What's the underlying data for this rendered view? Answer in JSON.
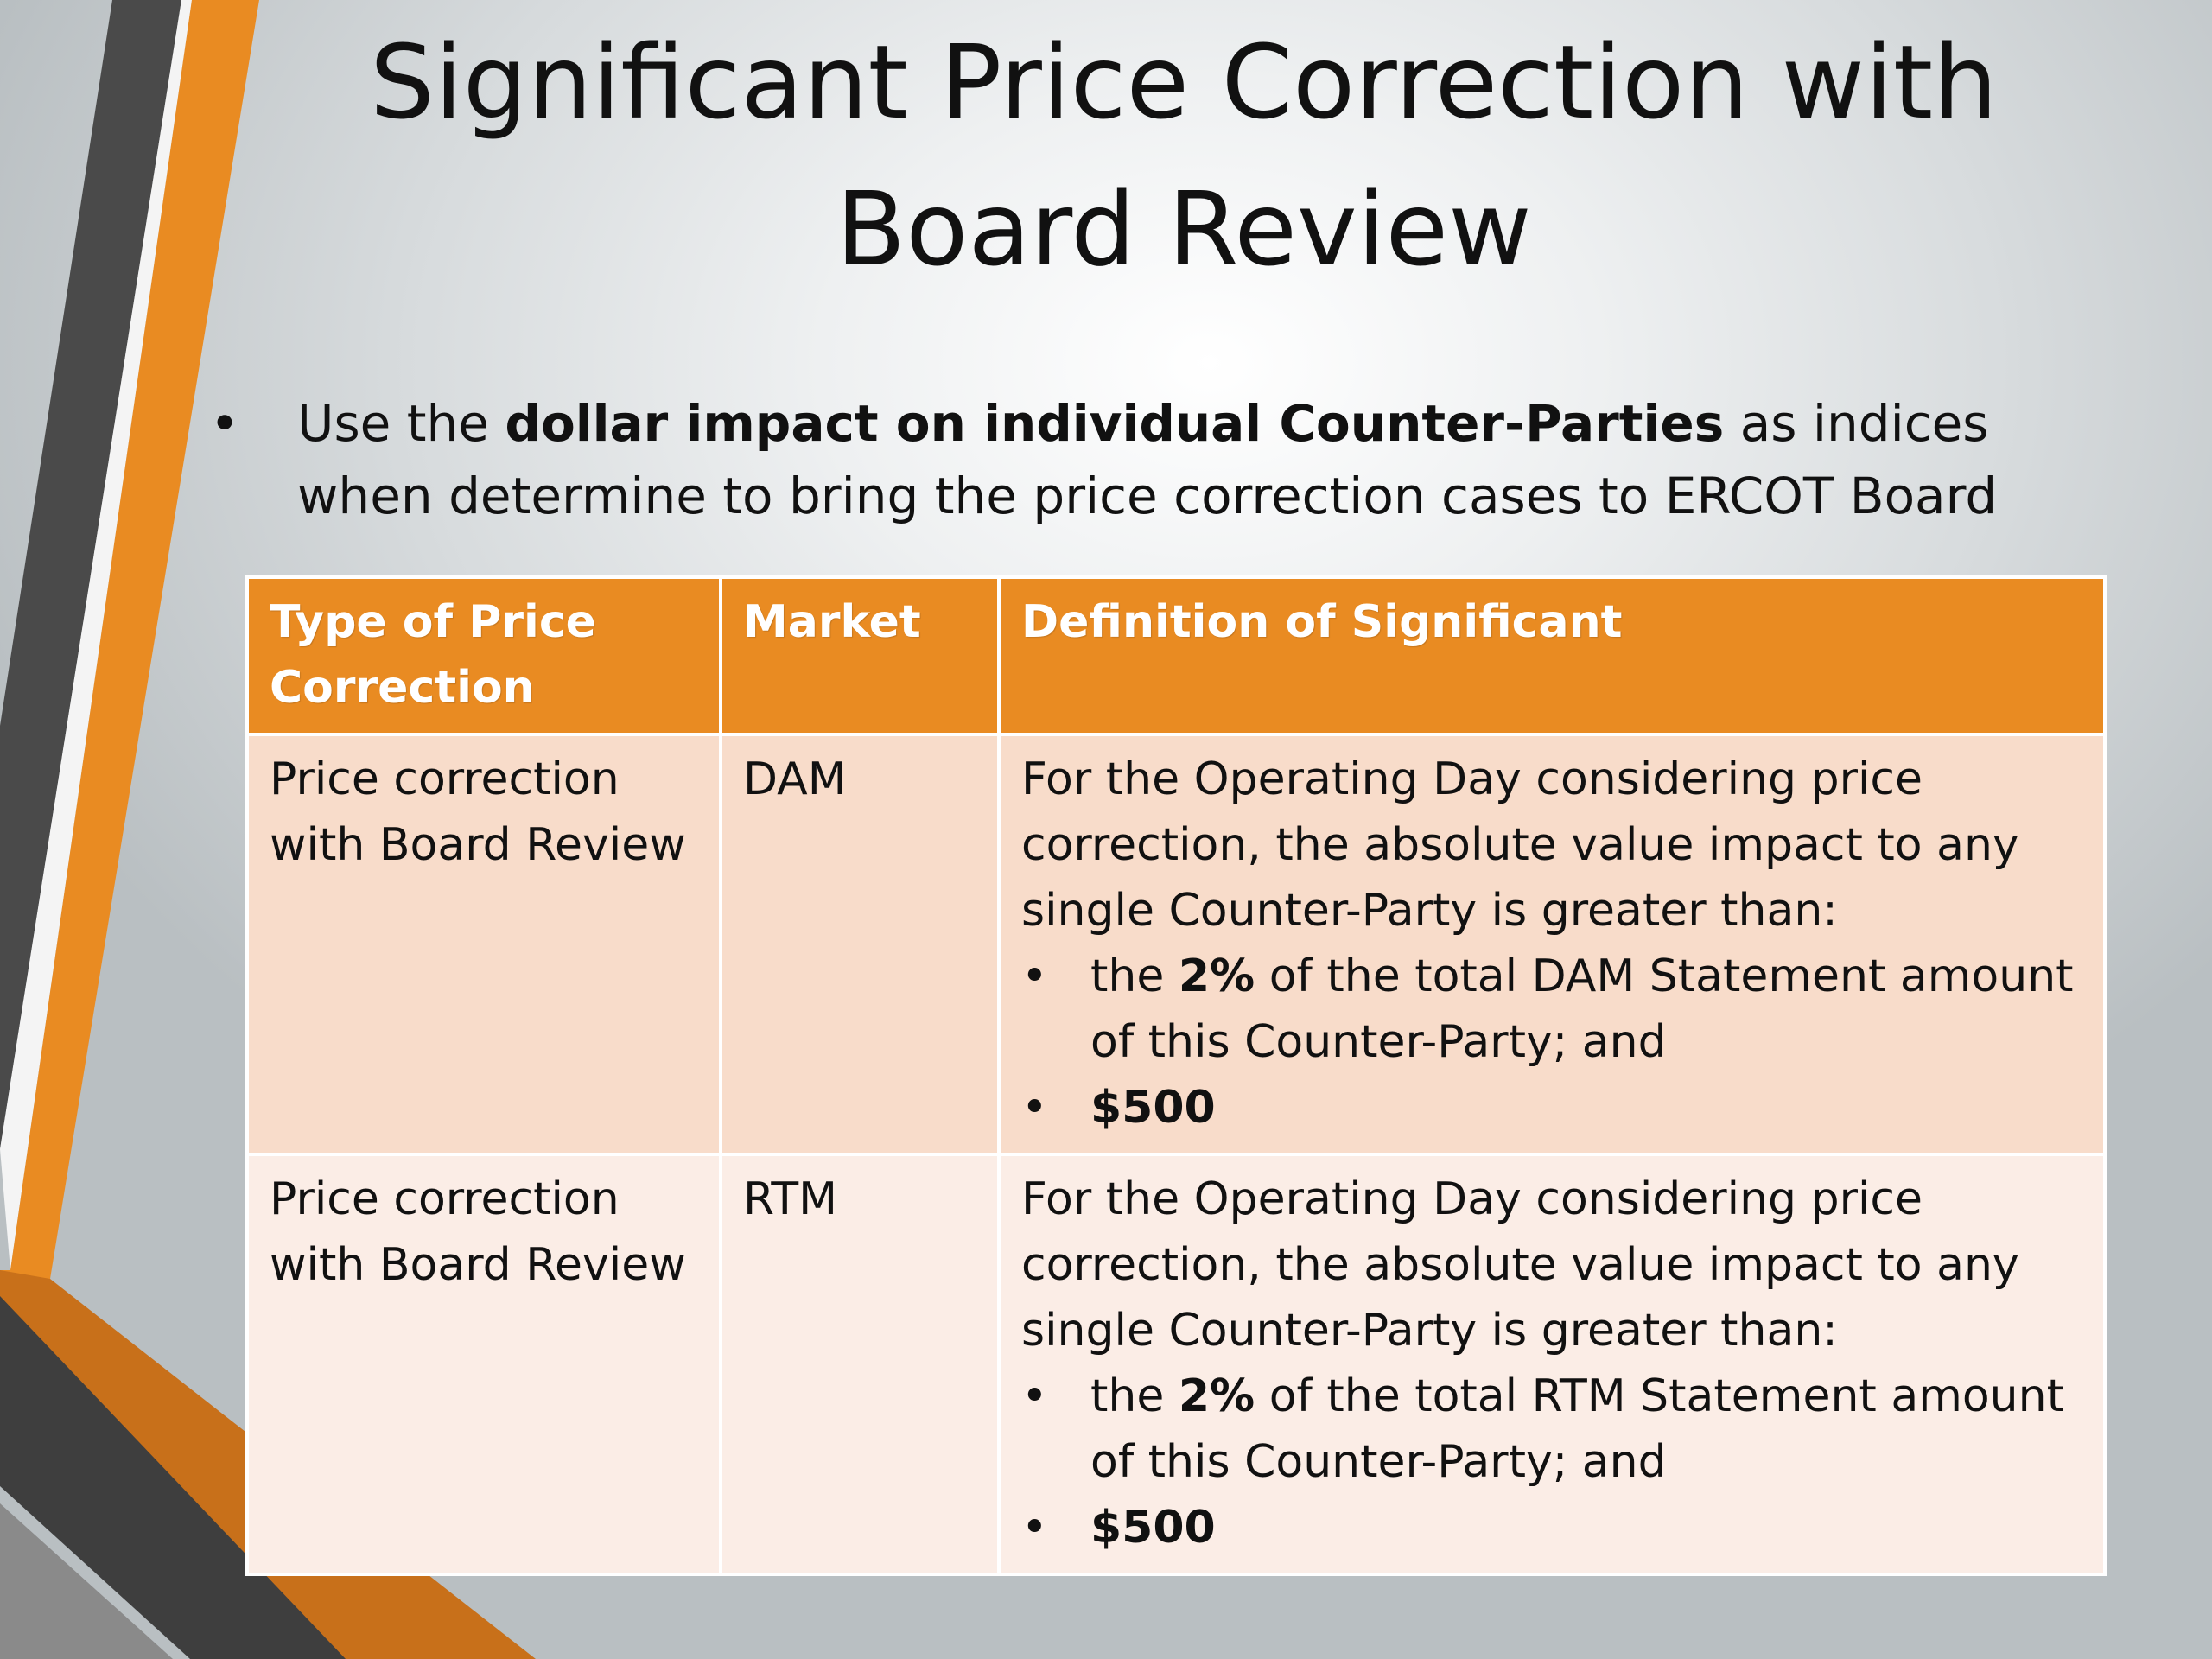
{
  "slide": {
    "title_line1": "Significant Price Correction with",
    "title_line2": "Board Review",
    "bullet": {
      "prefix": "Use the ",
      "bold": "dollar impact on individual Counter-Parties",
      "suffix": " as indices when determine to bring the price correction cases to ERCOT Board"
    },
    "colors": {
      "accent_orange": "#e98b22",
      "dark_gray": "#4a4a4a",
      "row_dark": "#f8dcca",
      "row_light": "#fbede6"
    }
  },
  "table": {
    "headers": [
      "Type of Price Correction",
      "Market",
      "Definition of Significant"
    ],
    "rows": [
      {
        "type": "Price correction with Board Review",
        "market": "DAM",
        "definition_intro": "For the Operating Day considering price correction, the absolute value impact to any single Counter-Party is greater than:",
        "items": [
          {
            "pre": "the ",
            "bold": "2%",
            "post": " of the total DAM Statement amount of this Counter-Party; and"
          },
          {
            "pre": "",
            "bold": "$500",
            "post": ""
          }
        ]
      },
      {
        "type": "Price correction with Board Review",
        "market": "RTM",
        "definition_intro": "For the Operating Day considering price correction, the absolute value impact to any single Counter-Party is greater than:",
        "items": [
          {
            "pre": "the ",
            "bold": "2%",
            "post": " of the total RTM Statement amount of this Counter-Party; and"
          },
          {
            "pre": "",
            "bold": "$500",
            "post": ""
          }
        ]
      }
    ]
  }
}
